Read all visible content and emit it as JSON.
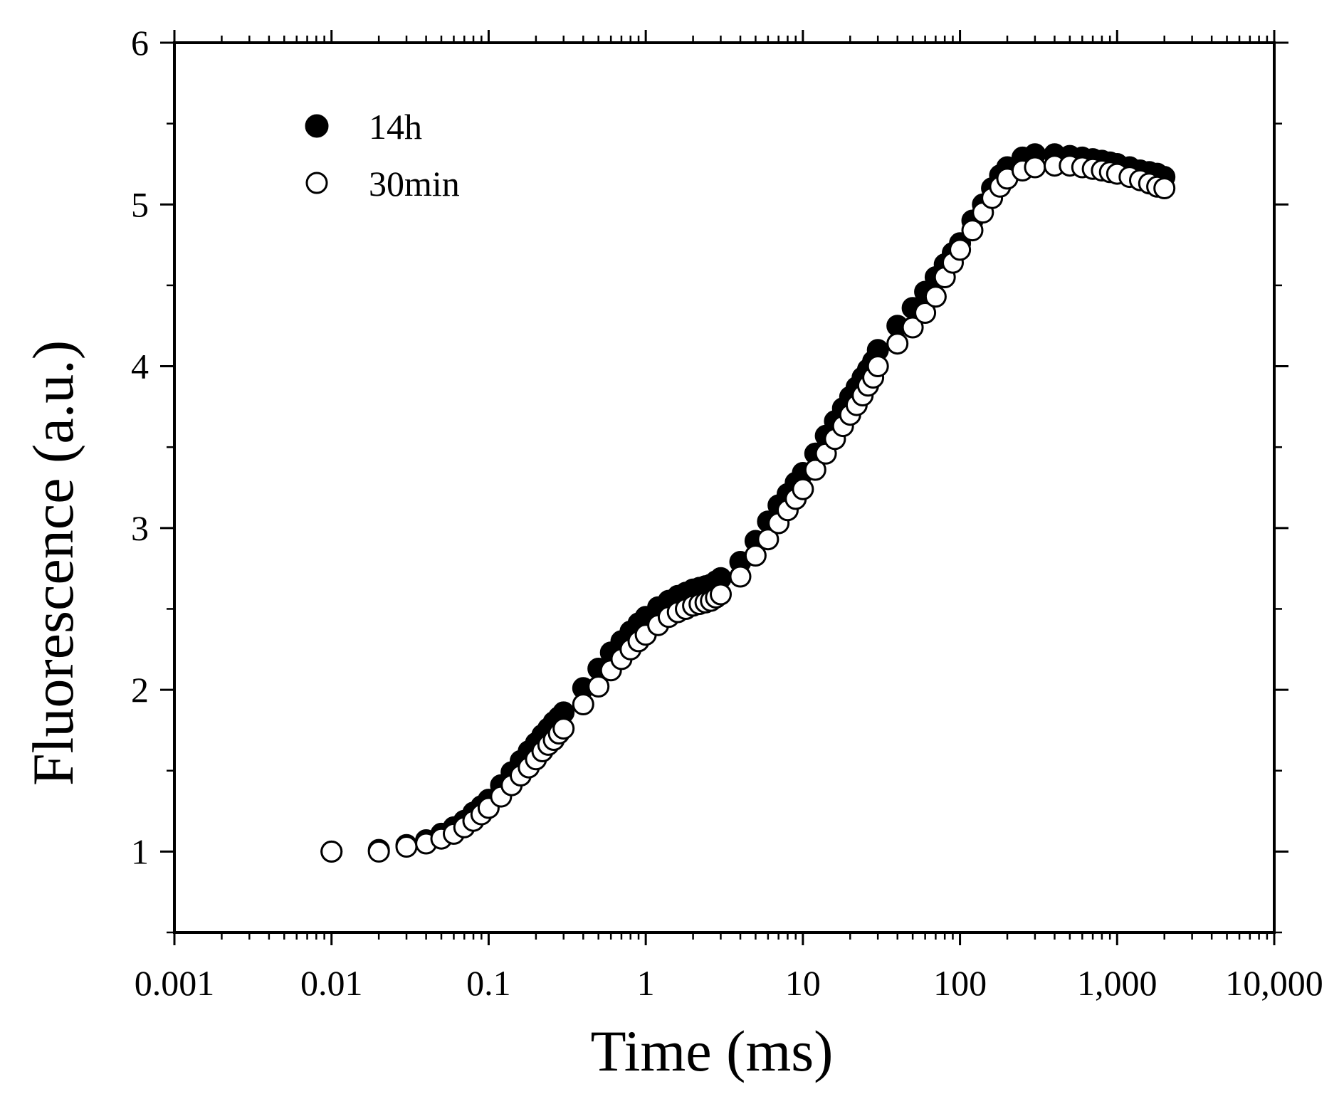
{
  "chart_data": {
    "type": "scatter",
    "title": "",
    "xlabel": "Time (ms)",
    "ylabel": "Fluorescence (a.u.)",
    "xscale": "log",
    "xlim": [
      0.001,
      10000
    ],
    "ylim": [
      0.5,
      6
    ],
    "xticks": [
      0.001,
      0.01,
      0.1,
      1,
      10,
      100,
      1000,
      10000
    ],
    "xtick_labels": [
      "0.001",
      "0.01",
      "0.1",
      "1",
      "10",
      "100",
      "1,000",
      "10,000"
    ],
    "yticks": [
      1,
      2,
      3,
      4,
      5,
      6
    ],
    "ytick_labels": [
      "1",
      "2",
      "3",
      "4",
      "5",
      "6"
    ],
    "legend_position": "top-left",
    "series": [
      {
        "name": "14h",
        "marker": "filled-circle",
        "points": [
          [
            0.01,
            1.0
          ],
          [
            0.02,
            1.01
          ],
          [
            0.03,
            1.04
          ],
          [
            0.04,
            1.07
          ],
          [
            0.05,
            1.11
          ],
          [
            0.06,
            1.15
          ],
          [
            0.07,
            1.19
          ],
          [
            0.08,
            1.24
          ],
          [
            0.09,
            1.28
          ],
          [
            0.1,
            1.32
          ],
          [
            0.12,
            1.41
          ],
          [
            0.14,
            1.49
          ],
          [
            0.16,
            1.56
          ],
          [
            0.18,
            1.62
          ],
          [
            0.2,
            1.67
          ],
          [
            0.22,
            1.72
          ],
          [
            0.24,
            1.76
          ],
          [
            0.26,
            1.8
          ],
          [
            0.28,
            1.83
          ],
          [
            0.3,
            1.86
          ],
          [
            0.4,
            2.01
          ],
          [
            0.5,
            2.13
          ],
          [
            0.6,
            2.23
          ],
          [
            0.7,
            2.3
          ],
          [
            0.8,
            2.36
          ],
          [
            0.9,
            2.41
          ],
          [
            1.0,
            2.45
          ],
          [
            1.2,
            2.51
          ],
          [
            1.4,
            2.55
          ],
          [
            1.6,
            2.58
          ],
          [
            1.8,
            2.6
          ],
          [
            2.0,
            2.62
          ],
          [
            2.2,
            2.63
          ],
          [
            2.4,
            2.64
          ],
          [
            2.6,
            2.65
          ],
          [
            2.8,
            2.67
          ],
          [
            3.0,
            2.69
          ],
          [
            4.0,
            2.79
          ],
          [
            5.0,
            2.92
          ],
          [
            6.0,
            3.04
          ],
          [
            7.0,
            3.14
          ],
          [
            8.0,
            3.21
          ],
          [
            9.0,
            3.28
          ],
          [
            10.0,
            3.34
          ],
          [
            12.0,
            3.46
          ],
          [
            14.0,
            3.57
          ],
          [
            16.0,
            3.66
          ],
          [
            18.0,
            3.74
          ],
          [
            20.0,
            3.81
          ],
          [
            22.0,
            3.87
          ],
          [
            24.0,
            3.93
          ],
          [
            26.0,
            3.98
          ],
          [
            28.0,
            4.03
          ],
          [
            30.0,
            4.1
          ],
          [
            40.0,
            4.25
          ],
          [
            50.0,
            4.36
          ],
          [
            60.0,
            4.46
          ],
          [
            70.0,
            4.55
          ],
          [
            80.0,
            4.63
          ],
          [
            90.0,
            4.7
          ],
          [
            100.0,
            4.76
          ],
          [
            120.0,
            4.9
          ],
          [
            140.0,
            5.0
          ],
          [
            160.0,
            5.1
          ],
          [
            180.0,
            5.18
          ],
          [
            200.0,
            5.23
          ],
          [
            250.0,
            5.29
          ],
          [
            300.0,
            5.31
          ],
          [
            400.0,
            5.31
          ],
          [
            500.0,
            5.3
          ],
          [
            600.0,
            5.29
          ],
          [
            700.0,
            5.28
          ],
          [
            800.0,
            5.27
          ],
          [
            900.0,
            5.26
          ],
          [
            1000.0,
            5.25
          ],
          [
            1200.0,
            5.23
          ],
          [
            1400.0,
            5.21
          ],
          [
            1600.0,
            5.2
          ],
          [
            1800.0,
            5.19
          ],
          [
            2000.0,
            5.17
          ]
        ]
      },
      {
        "name": "30min",
        "marker": "open-circle",
        "points": [
          [
            0.01,
            1.0
          ],
          [
            0.02,
            1.0
          ],
          [
            0.03,
            1.03
          ],
          [
            0.04,
            1.05
          ],
          [
            0.05,
            1.08
          ],
          [
            0.06,
            1.11
          ],
          [
            0.07,
            1.15
          ],
          [
            0.08,
            1.19
          ],
          [
            0.09,
            1.23
          ],
          [
            0.1,
            1.27
          ],
          [
            0.12,
            1.34
          ],
          [
            0.14,
            1.41
          ],
          [
            0.16,
            1.47
          ],
          [
            0.18,
            1.52
          ],
          [
            0.2,
            1.57
          ],
          [
            0.22,
            1.62
          ],
          [
            0.24,
            1.66
          ],
          [
            0.26,
            1.69
          ],
          [
            0.28,
            1.73
          ],
          [
            0.3,
            1.76
          ],
          [
            0.4,
            1.91
          ],
          [
            0.5,
            2.02
          ],
          [
            0.6,
            2.12
          ],
          [
            0.7,
            2.19
          ],
          [
            0.8,
            2.25
          ],
          [
            0.9,
            2.3
          ],
          [
            1.0,
            2.34
          ],
          [
            1.2,
            2.4
          ],
          [
            1.4,
            2.45
          ],
          [
            1.6,
            2.48
          ],
          [
            1.8,
            2.5
          ],
          [
            2.0,
            2.52
          ],
          [
            2.2,
            2.53
          ],
          [
            2.4,
            2.54
          ],
          [
            2.6,
            2.55
          ],
          [
            2.8,
            2.57
          ],
          [
            3.0,
            2.59
          ],
          [
            4.0,
            2.7
          ],
          [
            5.0,
            2.83
          ],
          [
            6.0,
            2.93
          ],
          [
            7.0,
            3.03
          ],
          [
            8.0,
            3.11
          ],
          [
            9.0,
            3.18
          ],
          [
            10.0,
            3.24
          ],
          [
            12.0,
            3.36
          ],
          [
            14.0,
            3.46
          ],
          [
            16.0,
            3.55
          ],
          [
            18.0,
            3.63
          ],
          [
            20.0,
            3.7
          ],
          [
            22.0,
            3.76
          ],
          [
            24.0,
            3.82
          ],
          [
            26.0,
            3.88
          ],
          [
            28.0,
            3.93
          ],
          [
            30.0,
            4.0
          ],
          [
            40.0,
            4.14
          ],
          [
            50.0,
            4.24
          ],
          [
            60.0,
            4.33
          ],
          [
            70.0,
            4.43
          ],
          [
            80.0,
            4.55
          ],
          [
            90.0,
            4.64
          ],
          [
            100.0,
            4.72
          ],
          [
            120.0,
            4.84
          ],
          [
            140.0,
            4.95
          ],
          [
            160.0,
            5.04
          ],
          [
            180.0,
            5.11
          ],
          [
            200.0,
            5.16
          ],
          [
            250.0,
            5.21
          ],
          [
            300.0,
            5.23
          ],
          [
            400.0,
            5.24
          ],
          [
            500.0,
            5.24
          ],
          [
            600.0,
            5.23
          ],
          [
            700.0,
            5.22
          ],
          [
            800.0,
            5.21
          ],
          [
            900.0,
            5.2
          ],
          [
            1000.0,
            5.19
          ],
          [
            1200.0,
            5.17
          ],
          [
            1400.0,
            5.15
          ],
          [
            1600.0,
            5.13
          ],
          [
            1800.0,
            5.11
          ],
          [
            2000.0,
            5.1
          ]
        ]
      }
    ]
  }
}
